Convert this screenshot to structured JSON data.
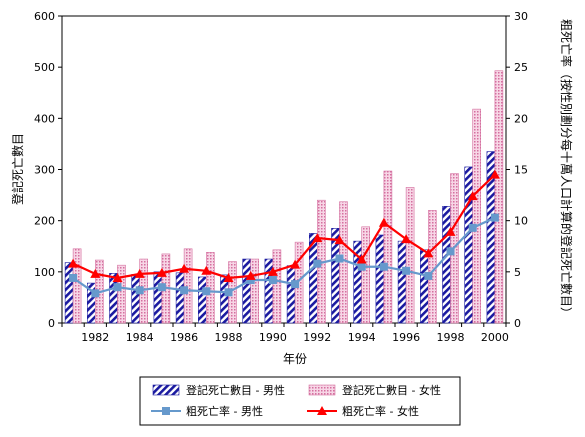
{
  "chart_data": {
    "type": "bar",
    "xlabel": "年份",
    "ylabel_left": "登記死亡數目",
    "ylabel_right": "粗死亡率（按性別劃分每十萬人口計算的登記死亡數目）",
    "years": [
      1981,
      1982,
      1983,
      1984,
      1985,
      1986,
      1987,
      1988,
      1989,
      1990,
      1991,
      1992,
      1993,
      1994,
      1995,
      1996,
      1997,
      1998,
      1999,
      2000
    ],
    "x_tick_labels": [
      "1982",
      "1984",
      "1986",
      "1988",
      "1990",
      "1992",
      "1994",
      "1996",
      "1998",
      "2000"
    ],
    "x_tick_years": [
      1982,
      1984,
      1986,
      1988,
      1990,
      1992,
      1994,
      1996,
      1998,
      2000
    ],
    "ylim_left": [
      0,
      600
    ],
    "ylim_right": [
      0,
      30
    ],
    "yticks_left": [
      "0",
      "100",
      "200",
      "300",
      "400",
      "500",
      "600"
    ],
    "yticks_right": [
      "0",
      "5",
      "10",
      "15",
      "20",
      "25",
      "30"
    ],
    "grid": false,
    "legend_position": "bottom",
    "series": [
      {
        "name": "登記死亡數目 - 男性",
        "kind": "bar",
        "axis": "left",
        "color": "#1a1aa0",
        "values": [
          118,
          78,
          97,
          95,
          100,
          98,
          90,
          94,
          125,
          125,
          112,
          175,
          185,
          160,
          172,
          160,
          143,
          228,
          305,
          335
        ]
      },
      {
        "name": "登記死亡數目 - 女性",
        "kind": "bar",
        "axis": "left",
        "color": "#e5a0c0",
        "values": [
          145,
          123,
          113,
          125,
          135,
          145,
          138,
          120,
          125,
          143,
          158,
          240,
          237,
          188,
          297,
          265,
          220,
          292,
          418,
          493
        ]
      },
      {
        "name": "粗死亡率 - 男性",
        "kind": "line",
        "axis": "right",
        "color": "#6699cc",
        "values": [
          4.4,
          2.9,
          3.5,
          3.2,
          3.5,
          3.2,
          3.1,
          3.0,
          4.2,
          4.2,
          3.8,
          5.8,
          6.3,
          5.5,
          5.5,
          5.1,
          4.6,
          7.0,
          9.3,
          10.3
        ]
      },
      {
        "name": "粗死亡率 - 女性",
        "kind": "line",
        "axis": "right",
        "color": "#ff0000",
        "values": [
          5.8,
          4.8,
          4.4,
          4.8,
          4.9,
          5.3,
          5.1,
          4.4,
          4.6,
          5.0,
          5.7,
          8.3,
          8.1,
          6.2,
          9.8,
          8.2,
          6.8,
          8.9,
          12.4,
          14.5
        ]
      }
    ]
  }
}
